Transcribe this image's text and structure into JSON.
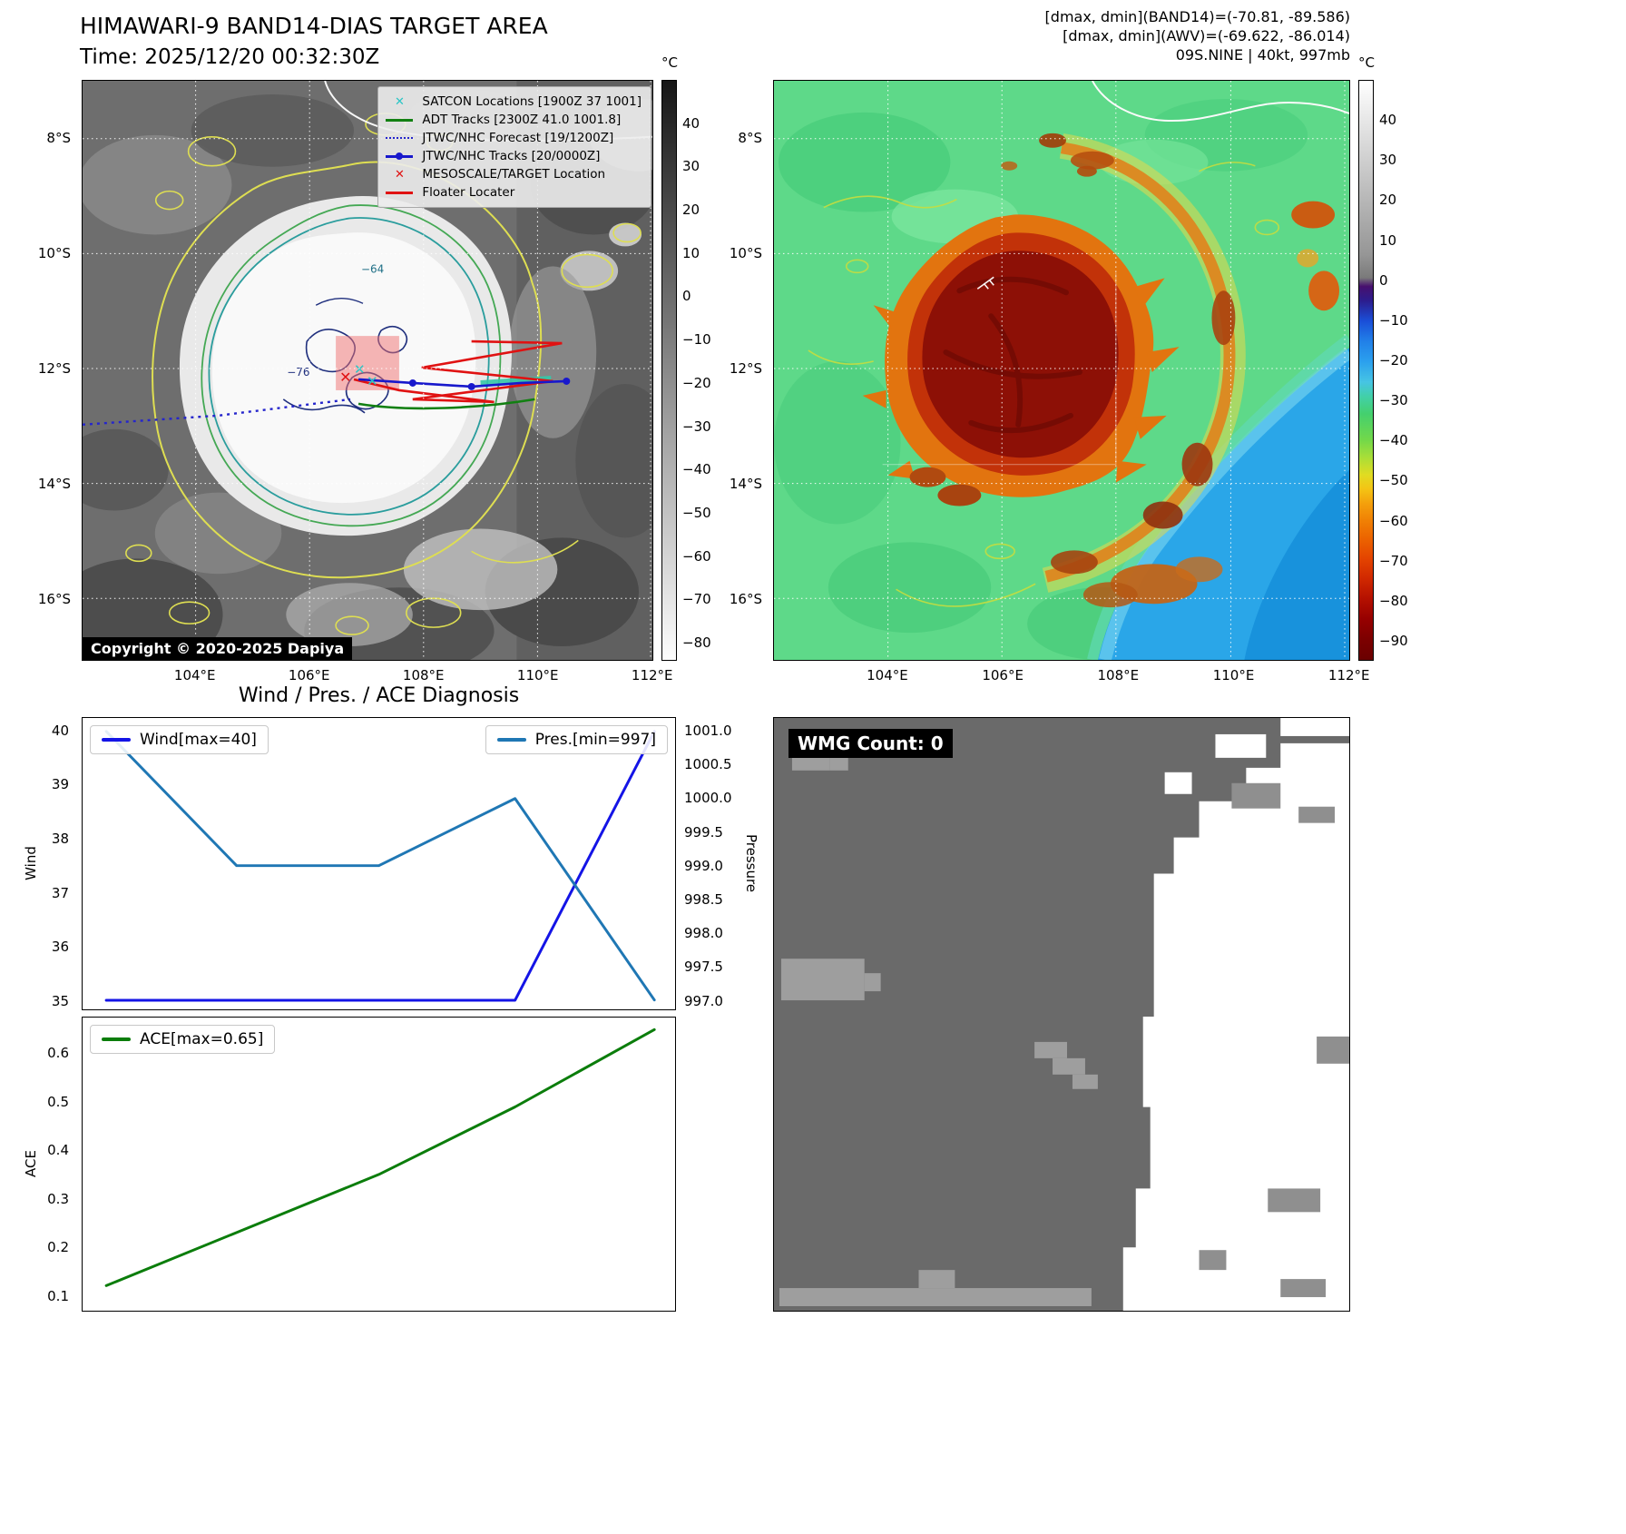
{
  "band14": {
    "title": "HIMAWARI-9 BAND14-DIAS TARGET AREA",
    "subtitle": "Time: 2025/12/20 00:32:30Z",
    "copyright": "Copyright © 2020-2025 Dapiya",
    "colorbar_unit": "°C",
    "colorbar_ticks": [
      [
        40,
        "40"
      ],
      [
        30,
        "30"
      ],
      [
        20,
        "20"
      ],
      [
        10,
        "10"
      ],
      [
        0,
        "0"
      ],
      [
        -10,
        "−10"
      ],
      [
        -20,
        "−20"
      ],
      [
        -30,
        "−30"
      ],
      [
        -40,
        "−40"
      ],
      [
        -50,
        "−50"
      ],
      [
        -60,
        "−60"
      ],
      [
        -70,
        "−70"
      ],
      [
        -80,
        "−80"
      ]
    ],
    "lat_ticks": [
      "8°S",
      "10°S",
      "12°S",
      "14°S",
      "16°S"
    ],
    "lon_ticks": [
      "104°E",
      "106°E",
      "108°E",
      "110°E",
      "112°E"
    ],
    "contour_labels": {
      "outer": "−64",
      "inner": "−76"
    },
    "legend_items": [
      {
        "label": "SATCON Locations [1900Z 37 1001]",
        "marker": "x",
        "color": "#29c5c5",
        "icon": "satcon-x-icon"
      },
      {
        "label": "ADT Tracks [2300Z 41.0 1001.8]",
        "marker": "line",
        "color": "#128012",
        "icon": "adt-track-line-icon"
      },
      {
        "label": "JTWC/NHC Forecast [19/1200Z]",
        "marker": "dotted",
        "color": "#2525cc",
        "icon": "forecast-dotted-line-icon"
      },
      {
        "label": "JTWC/NHC Tracks [20/0000Z]",
        "marker": "line-dot",
        "color": "#1818cc",
        "icon": "track-line-dot-icon"
      },
      {
        "label": "MESOSCALE/TARGET Location",
        "marker": "x",
        "color": "#e01212",
        "icon": "target-x-icon"
      },
      {
        "label": "Floater Locater",
        "marker": "line",
        "color": "#e01212",
        "icon": "floater-line-icon"
      }
    ]
  },
  "enhanced": {
    "info_line1": "[dmax, dmin](BAND14)=(-70.81, -89.586)",
    "info_line2": "[dmax, dmin](AWV)=(-69.622, -86.014)",
    "info_line3": "09S.NINE | 40kt, 997mb",
    "colorbar_unit": "°C",
    "colorbar_ticks": [
      [
        40,
        "40"
      ],
      [
        30,
        "30"
      ],
      [
        20,
        "20"
      ],
      [
        10,
        "10"
      ],
      [
        0,
        "0"
      ],
      [
        -10,
        "−10"
      ],
      [
        -20,
        "−20"
      ],
      [
        -30,
        "−30"
      ],
      [
        -40,
        "−40"
      ],
      [
        -50,
        "−50"
      ],
      [
        -60,
        "−60"
      ],
      [
        -70,
        "−70"
      ],
      [
        -80,
        "−80"
      ],
      [
        -90,
        "−90"
      ]
    ],
    "lat_ticks": [
      "8°S",
      "10°S",
      "12°S",
      "14°S",
      "16°S"
    ],
    "lon_ticks": [
      "104°E",
      "106°E",
      "108°E",
      "110°E",
      "112°E"
    ]
  },
  "wmg": {
    "label": "WMG Count: 0"
  },
  "chart_data": [
    {
      "id": "wind-pres",
      "type": "line",
      "title": "Wind / Pres. / ACE Diagnosis",
      "xlim": [
        0,
        1
      ],
      "grid": false,
      "legend_position": "upper-left and upper-right",
      "left_axis": {
        "label": "Wind",
        "lim": [
          34.83,
          40.25
        ],
        "ticks": [
          [
            35,
            "35"
          ],
          [
            36,
            "36"
          ],
          [
            37,
            "37"
          ],
          [
            38,
            "38"
          ],
          [
            39,
            "39"
          ],
          [
            40,
            "40"
          ]
        ]
      },
      "right_axis": {
        "label": "Pressure",
        "lim": [
          996.86,
          1001.2
        ],
        "ticks": [
          [
            997,
            "997.0"
          ],
          [
            997.5,
            "997.5"
          ],
          [
            998,
            "998.0"
          ],
          [
            998.5,
            "998.5"
          ],
          [
            999,
            "999.0"
          ],
          [
            999.5,
            "999.5"
          ],
          [
            1000,
            "1000.0"
          ],
          [
            1000.5,
            "1000.5"
          ],
          [
            1001,
            "1001.0"
          ]
        ]
      },
      "series": [
        {
          "name": "Wind[max=40]",
          "axis": "left",
          "color": "#1414e6",
          "x": [
            0.04,
            0.73,
            0.965
          ],
          "y": [
            35,
            35,
            40
          ]
        },
        {
          "name": "Pres.[min=997]",
          "axis": "right",
          "color": "#1f77b4",
          "x": [
            0.04,
            0.26,
            0.5,
            0.73,
            0.965
          ],
          "y": [
            1001.0,
            999.0,
            999.0,
            1000.0,
            997.0
          ]
        }
      ]
    },
    {
      "id": "ace",
      "type": "line",
      "xlim": [
        0,
        1
      ],
      "grid": false,
      "legend_position": "upper-left",
      "left_axis": {
        "label": "ACE",
        "lim": [
          0.068,
          0.675
        ],
        "ticks": [
          [
            0.1,
            "0.1"
          ],
          [
            0.2,
            "0.2"
          ],
          [
            0.3,
            "0.3"
          ],
          [
            0.4,
            "0.4"
          ],
          [
            0.5,
            "0.5"
          ],
          [
            0.6,
            "0.6"
          ]
        ]
      },
      "series": [
        {
          "name": "ACE[max=0.65]",
          "axis": "left",
          "color": "#0b7d0b",
          "x": [
            0.04,
            0.26,
            0.5,
            0.73,
            0.965
          ],
          "y": [
            0.12,
            0.23,
            0.35,
            0.49,
            0.65
          ]
        }
      ]
    }
  ]
}
